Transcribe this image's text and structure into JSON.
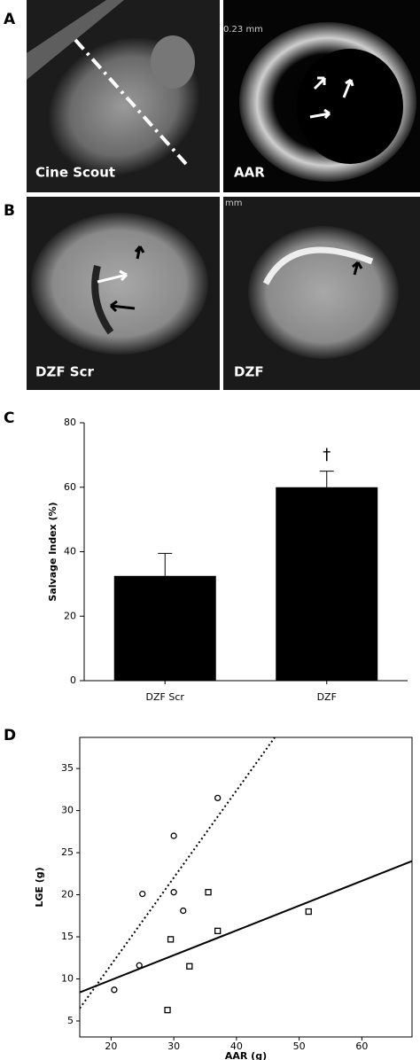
{
  "figure": {
    "panel_labels": [
      "A",
      "B",
      "C",
      "D"
    ],
    "images": [
      {
        "caption": "Cine Scout"
      },
      {
        "caption": "AAR",
        "scale_text": "0.23 mm"
      },
      {
        "caption": "DZF Scr"
      },
      {
        "caption": "DZF",
        "scale_text": "mm"
      }
    ]
  },
  "chart_data": [
    {
      "type": "bar",
      "ylabel": "Salvage Index (%)",
      "categories": [
        "DZF Scr",
        "DZF"
      ],
      "values": [
        32.5,
        60
      ],
      "errors": [
        7,
        5
      ],
      "color": "#000000",
      "ylim": [
        0,
        80
      ],
      "yticks": [
        0,
        20,
        40,
        60,
        80
      ],
      "annotations": [
        {
          "text": "†",
          "category": "DZF"
        }
      ]
    },
    {
      "type": "scatter",
      "xlabel": "AAR (g)",
      "ylabel": "LGE (g)",
      "xlim": [
        15,
        68
      ],
      "ylim": [
        3.1,
        38.7
      ],
      "xticks": [
        20,
        30,
        40,
        50,
        60
      ],
      "yticks": [
        5,
        10,
        15,
        20,
        25,
        30,
        35
      ],
      "series": [
        {
          "marker": "circle",
          "x": [
            20.5,
            24.5,
            25,
            30,
            30,
            31.5,
            37
          ],
          "y": [
            8.7,
            11.6,
            20.1,
            27,
            20.3,
            18.1,
            31.5
          ]
        },
        {
          "marker": "square",
          "x": [
            29,
            29.5,
            32.5,
            35.5,
            37,
            51.5
          ],
          "y": [
            6.3,
            14.7,
            11.5,
            20.3,
            15.7,
            18
          ]
        }
      ],
      "lines": [
        {
          "style": "dotted",
          "x": [
            15,
            46.1
          ],
          "y": [
            6.5,
            38.7
          ]
        },
        {
          "style": "solid",
          "x": [
            15,
            68
          ],
          "y": [
            8.4,
            24
          ]
        }
      ]
    }
  ]
}
